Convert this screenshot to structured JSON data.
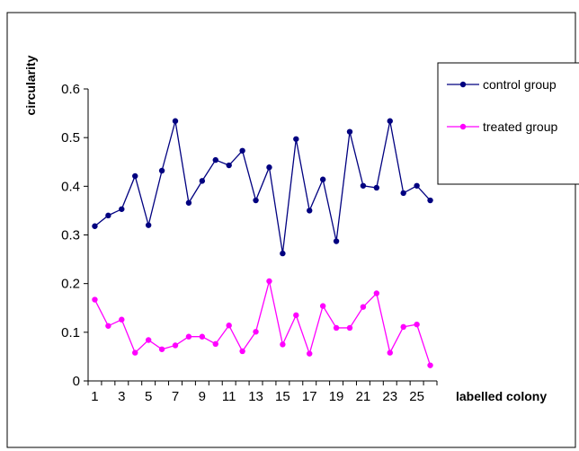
{
  "chart_data": {
    "type": "line",
    "title": "",
    "xlabel": "labelled colony",
    "ylabel": "circularity",
    "x": [
      1,
      2,
      3,
      4,
      5,
      6,
      7,
      8,
      9,
      10,
      11,
      12,
      13,
      14,
      15,
      16,
      17,
      18,
      19,
      20,
      21,
      22,
      23,
      24,
      25,
      26
    ],
    "x_tick_labels": [
      "1",
      "3",
      "5",
      "7",
      "9",
      "11",
      "13",
      "15",
      "17",
      "19",
      "21",
      "23",
      "25"
    ],
    "y_tick_labels": [
      "0",
      "0.1",
      "0.2",
      "0.3",
      "0.4",
      "0.5",
      "0.6"
    ],
    "ylim": [
      0,
      0.6
    ],
    "grid": false,
    "legend_position": "right",
    "series": [
      {
        "name": "control group",
        "color": "#000080",
        "values": [
          0.318,
          0.34,
          0.353,
          0.421,
          0.32,
          0.432,
          0.534,
          0.366,
          0.411,
          0.454,
          0.443,
          0.473,
          0.371,
          0.439,
          0.262,
          0.497,
          0.35,
          0.414,
          0.287,
          0.512,
          0.401,
          0.397,
          0.534,
          0.386,
          0.401,
          0.371
        ]
      },
      {
        "name": "treated group",
        "color": "#ff00ff",
        "values": [
          0.167,
          0.113,
          0.126,
          0.058,
          0.084,
          0.065,
          0.073,
          0.091,
          0.091,
          0.076,
          0.114,
          0.061,
          0.101,
          0.205,
          0.075,
          0.135,
          0.056,
          0.154,
          0.109,
          0.109,
          0.152,
          0.18,
          0.058,
          0.111,
          0.116,
          0.032
        ]
      }
    ]
  }
}
